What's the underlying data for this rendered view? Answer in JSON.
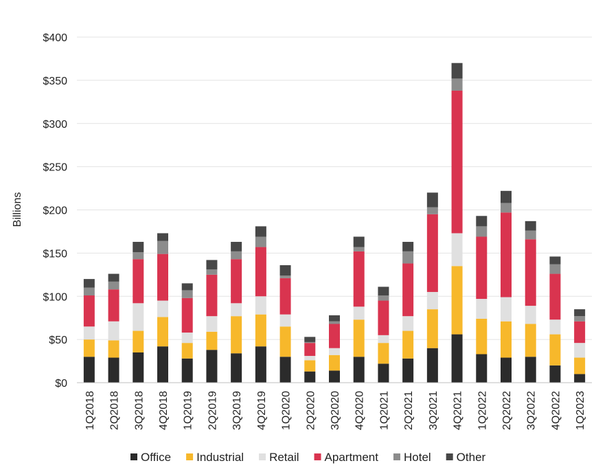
{
  "chart_data": {
    "type": "bar",
    "stacked": true,
    "title": "",
    "xlabel": "",
    "ylabel": "Billions",
    "ylim": [
      0,
      400
    ],
    "yticks": [
      0,
      50,
      100,
      150,
      200,
      250,
      300,
      350,
      400
    ],
    "ytick_labels": [
      "$0",
      "$50",
      "$100",
      "$150",
      "$200",
      "$250",
      "$300",
      "$350",
      "$400"
    ],
    "grid": true,
    "legend_position": "bottom",
    "categories": [
      "1Q2018",
      "2Q2018",
      "3Q2018",
      "4Q2018",
      "1Q2019",
      "2Q2019",
      "3Q2019",
      "4Q2019",
      "1Q2020",
      "2Q2020",
      "3Q2020",
      "4Q2020",
      "1Q2021",
      "2Q2021",
      "3Q2021",
      "4Q2021",
      "1Q2022",
      "2Q2022",
      "3Q2022",
      "4Q2022",
      "1Q2023"
    ],
    "series": [
      {
        "name": "Office",
        "color": "#2b2b2b",
        "values": [
          30,
          29,
          35,
          42,
          28,
          38,
          34,
          42,
          30,
          13,
          14,
          30,
          22,
          28,
          40,
          56,
          33,
          29,
          30,
          20,
          10
        ]
      },
      {
        "name": "Industrial",
        "color": "#f7b82b",
        "values": [
          20,
          20,
          25,
          34,
          18,
          21,
          43,
          37,
          35,
          13,
          18,
          43,
          24,
          32,
          45,
          79,
          41,
          42,
          38,
          36,
          19
        ]
      },
      {
        "name": "Retail",
        "color": "#e0e0e0",
        "values": [
          15,
          22,
          32,
          19,
          12,
          18,
          15,
          21,
          14,
          5,
          8,
          15,
          9,
          17,
          20,
          38,
          23,
          28,
          21,
          17,
          17
        ]
      },
      {
        "name": "Apartment",
        "color": "#d9344f",
        "values": [
          36,
          37,
          51,
          54,
          40,
          48,
          51,
          57,
          42,
          15,
          28,
          64,
          40,
          61,
          90,
          165,
          72,
          98,
          77,
          53,
          25
        ]
      },
      {
        "name": "Hotel",
        "color": "#8c8c8c",
        "values": [
          9,
          9,
          8,
          15,
          9,
          6,
          9,
          12,
          3,
          1,
          3,
          5,
          6,
          14,
          8,
          14,
          12,
          11,
          10,
          11,
          6
        ]
      },
      {
        "name": "Other",
        "color": "#474747",
        "values": [
          10,
          9,
          12,
          9,
          8,
          11,
          11,
          12,
          12,
          6,
          7,
          12,
          10,
          11,
          17,
          18,
          12,
          14,
          11,
          9,
          8
        ]
      }
    ]
  }
}
